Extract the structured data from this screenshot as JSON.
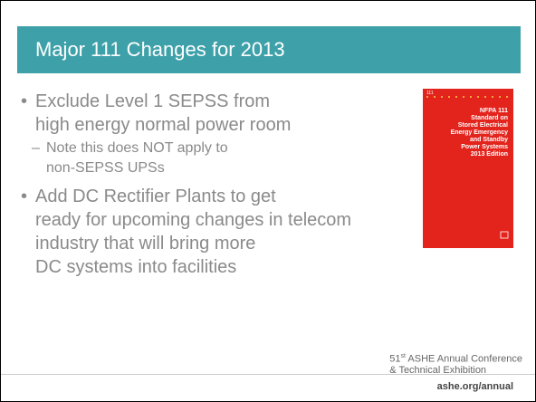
{
  "header": {
    "title": "Major 111 Changes for 2013"
  },
  "bullets": [
    {
      "lines": [
        "Exclude Level 1 SEPSS from",
        "high energy normal power room"
      ],
      "sub": [
        {
          "lines": [
            "Note this does NOT apply to",
            "non-SEPSS UPSs"
          ]
        }
      ]
    },
    {
      "lines": [
        "Add DC Rectifier Plants to get",
        "ready for upcoming changes in telecom",
        "industry that will bring more",
        "DC systems into facilities"
      ]
    }
  ],
  "book": {
    "number": "111",
    "title_lines": [
      "NFPA 111",
      "Standard on",
      "Stored Electrical",
      "Energy Emergency",
      "and Standby",
      "Power Systems",
      "2013 Edition"
    ]
  },
  "footer": {
    "ordinal": "51",
    "suffix": "st",
    "line1": "ASHE Annual Conference",
    "line2": "& Technical Exhibition",
    "url": "ashe.org/annual"
  }
}
